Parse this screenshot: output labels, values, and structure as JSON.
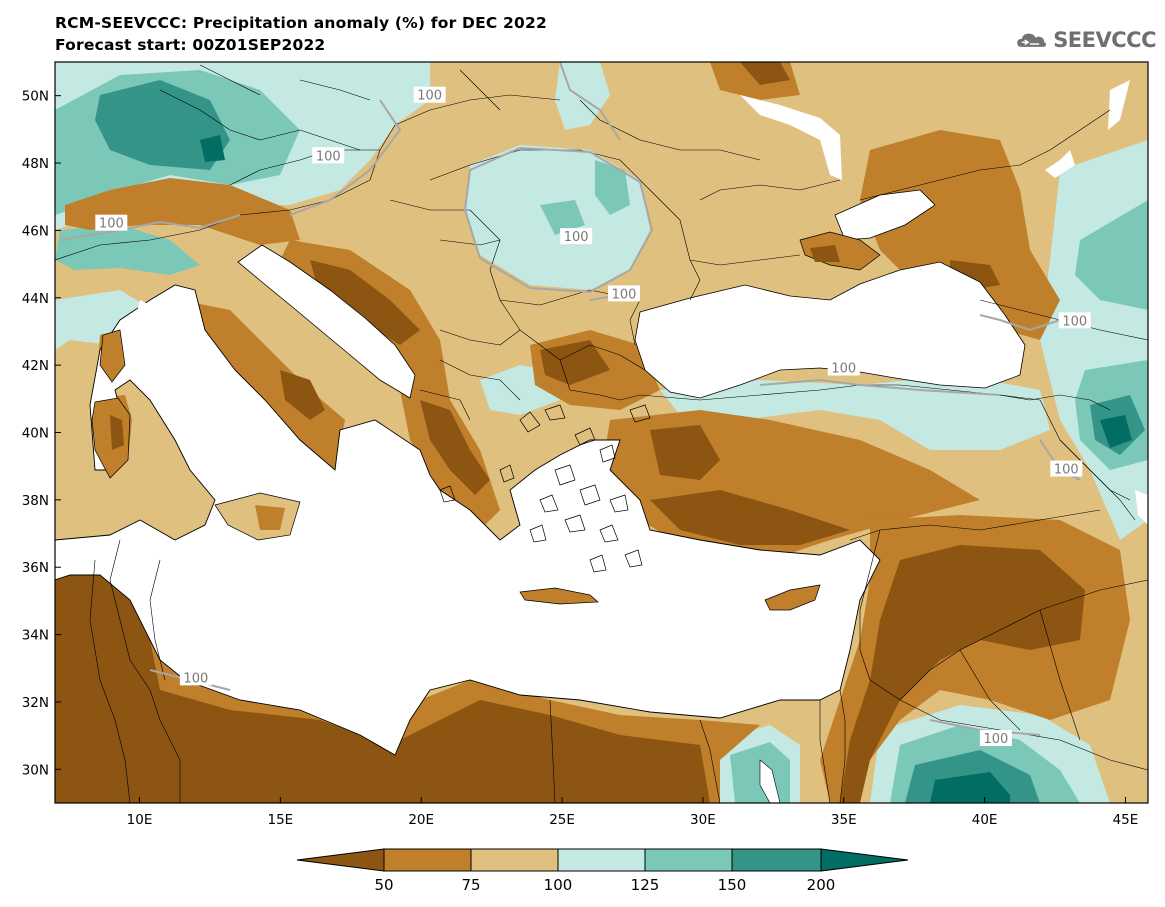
{
  "header": {
    "title": "RCM-SEEVCCC: Precipitation anomaly (%) for DEC 2022",
    "subtitle": "Forecast start: 00Z01SEP2022"
  },
  "logo": {
    "text": "SEEVCCC",
    "icon": "cloud-logo-icon"
  },
  "axes": {
    "lon_min": 7.0,
    "lon_max": 45.8,
    "lat_min": 29.0,
    "lat_max": 51.0,
    "x_ticks": [
      {
        "v": 10,
        "label": "10E"
      },
      {
        "v": 15,
        "label": "15E"
      },
      {
        "v": 20,
        "label": "20E"
      },
      {
        "v": 25,
        "label": "25E"
      },
      {
        "v": 30,
        "label": "30E"
      },
      {
        "v": 35,
        "label": "35E"
      },
      {
        "v": 40,
        "label": "40E"
      },
      {
        "v": 45,
        "label": "45E"
      }
    ],
    "y_ticks": [
      {
        "v": 30,
        "label": "30N"
      },
      {
        "v": 32,
        "label": "32N"
      },
      {
        "v": 34,
        "label": "34N"
      },
      {
        "v": 36,
        "label": "36N"
      },
      {
        "v": 38,
        "label": "38N"
      },
      {
        "v": 40,
        "label": "40N"
      },
      {
        "v": 42,
        "label": "42N"
      },
      {
        "v": 44,
        "label": "44N"
      },
      {
        "v": 46,
        "label": "46N"
      },
      {
        "v": 48,
        "label": "48N"
      },
      {
        "v": 50,
        "label": "50N"
      }
    ]
  },
  "colorbar": {
    "labels": [
      "50",
      "75",
      "100",
      "125",
      "150",
      "200"
    ],
    "colors": [
      "#8c5512",
      "#bf7f2b",
      "#dfc07f",
      "#c4e9e2",
      "#7cc8b8",
      "#359488",
      "#016d63"
    ]
  },
  "contour_labels": [
    {
      "text": "100",
      "lon": 20.3,
      "lat": 50.0
    },
    {
      "text": "100",
      "lon": 16.7,
      "lat": 48.2
    },
    {
      "text": "100",
      "lon": 25.5,
      "lat": 45.8
    },
    {
      "text": "100",
      "lon": 9.0,
      "lat": 46.2
    },
    {
      "text": "100",
      "lon": 27.2,
      "lat": 44.1
    },
    {
      "text": "100",
      "lon": 43.2,
      "lat": 43.3
    },
    {
      "text": "100",
      "lon": 35.0,
      "lat": 41.9
    },
    {
      "text": "100",
      "lon": 42.9,
      "lat": 38.9
    },
    {
      "text": "100",
      "lon": 12.0,
      "lat": 32.7
    },
    {
      "text": "100",
      "lon": 40.4,
      "lat": 30.9
    }
  ]
}
